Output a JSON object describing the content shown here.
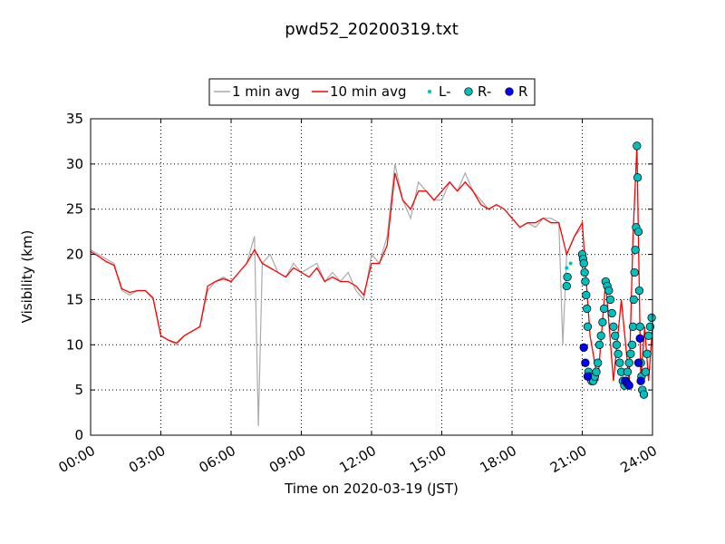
{
  "chart_data": {
    "type": "line",
    "title": "pwd52_20200319.txt",
    "xlabel": "Time on 2020-03-19 (JST)",
    "ylabel": "Visibility (km)",
    "xlim": [
      "00:00",
      "24:00"
    ],
    "ylim": [
      0,
      35
    ],
    "x_ticks": [
      "00:00",
      "03:00",
      "06:00",
      "09:00",
      "12:00",
      "15:00",
      "18:00",
      "21:00",
      "24:00"
    ],
    "y_ticks": [
      0,
      5,
      10,
      15,
      20,
      25,
      30,
      35
    ],
    "grid": true,
    "legend_position": "top-center",
    "series": [
      {
        "name": "1 min avg",
        "kind": "line",
        "color": "#aaaaaa",
        "x": [
          "00:00",
          "00:20",
          "00:40",
          "01:00",
          "01:20",
          "01:40",
          "02:00",
          "02:20",
          "02:40",
          "03:00",
          "03:20",
          "03:40",
          "04:00",
          "04:20",
          "04:40",
          "05:00",
          "05:20",
          "05:40",
          "06:00",
          "06:20",
          "06:40",
          "07:00",
          "07:10",
          "07:20",
          "07:40",
          "08:00",
          "08:20",
          "08:40",
          "09:00",
          "09:20",
          "09:40",
          "10:00",
          "10:20",
          "10:40",
          "11:00",
          "11:20",
          "11:40",
          "12:00",
          "12:20",
          "12:40",
          "13:00",
          "13:20",
          "13:40",
          "14:00",
          "14:20",
          "14:40",
          "15:00",
          "15:20",
          "15:40",
          "16:00",
          "16:20",
          "16:40",
          "17:00",
          "17:20",
          "17:40",
          "18:00",
          "18:20",
          "18:40",
          "19:00",
          "19:20",
          "19:40",
          "20:00",
          "20:10",
          "20:20",
          "20:40",
          "21:00"
        ],
        "values": [
          20.5,
          20,
          19.5,
          19,
          16,
          15.5,
          16,
          16,
          15,
          11,
          10.5,
          10,
          11,
          11.5,
          12,
          16,
          17,
          17.5,
          17,
          18,
          19,
          22,
          1,
          19,
          20,
          18,
          17.5,
          19,
          18,
          18.5,
          19,
          17,
          18,
          17,
          18,
          16,
          15,
          20,
          19,
          22,
          30,
          26,
          24,
          28,
          27,
          26,
          26,
          28,
          27,
          29,
          27,
          26,
          25,
          25.5,
          25,
          24,
          23,
          23.5,
          23,
          24,
          24,
          23.5,
          10,
          20,
          22,
          23
        ]
      },
      {
        "name": "10 min avg",
        "kind": "line",
        "color": "#ff0000",
        "x": [
          "00:00",
          "00:20",
          "00:40",
          "01:00",
          "01:20",
          "01:40",
          "02:00",
          "02:20",
          "02:40",
          "03:00",
          "03:20",
          "03:40",
          "04:00",
          "04:20",
          "04:40",
          "05:00",
          "05:20",
          "05:40",
          "06:00",
          "06:20",
          "06:40",
          "07:00",
          "07:20",
          "07:40",
          "08:00",
          "08:20",
          "08:40",
          "09:00",
          "09:20",
          "09:40",
          "10:00",
          "10:20",
          "10:40",
          "11:00",
          "11:20",
          "11:40",
          "12:00",
          "12:20",
          "12:40",
          "13:00",
          "13:20",
          "13:40",
          "14:00",
          "14:20",
          "14:40",
          "15:00",
          "15:20",
          "15:40",
          "16:00",
          "16:20",
          "16:40",
          "17:00",
          "17:20",
          "17:40",
          "18:00",
          "18:20",
          "18:40",
          "19:00",
          "19:20",
          "19:40",
          "20:00",
          "20:20",
          "20:40",
          "21:00",
          "21:20",
          "21:40",
          "22:00",
          "22:20",
          "22:40",
          "23:00",
          "23:10",
          "23:20",
          "23:30",
          "23:40",
          "23:50",
          "24:00"
        ],
        "values": [
          20.3,
          19.8,
          19.2,
          18.8,
          16.2,
          15.8,
          16,
          16,
          15.2,
          11,
          10.5,
          10.2,
          11,
          11.5,
          12,
          16.5,
          17,
          17.3,
          17,
          18,
          19,
          20.5,
          19,
          18.5,
          18,
          17.5,
          18.5,
          18,
          17.5,
          18.5,
          17,
          17.5,
          17,
          17,
          16.5,
          15.5,
          19,
          19,
          21,
          29,
          26,
          25,
          27,
          27,
          26,
          27,
          28,
          27,
          28,
          27,
          25.5,
          25,
          25.5,
          25,
          24,
          23,
          23.5,
          23.5,
          24,
          23.5,
          23.5,
          20,
          22,
          23.5,
          11,
          6,
          17,
          6,
          15,
          6,
          22,
          32,
          6,
          12,
          6,
          12
        ]
      },
      {
        "name": "L-",
        "kind": "scatter-small",
        "color": "#00bfbf",
        "x": [
          "20:20",
          "20:30"
        ],
        "values": [
          18.5,
          19
        ]
      },
      {
        "name": "R-",
        "kind": "scatter",
        "color": "#00bfbf",
        "x": [
          "20:20",
          "20:22",
          "21:00",
          "21:02",
          "21:04",
          "21:06",
          "21:08",
          "21:10",
          "21:12",
          "21:14",
          "21:16",
          "21:20",
          "21:24",
          "21:28",
          "21:32",
          "21:36",
          "21:40",
          "21:44",
          "21:48",
          "21:52",
          "21:56",
          "22:00",
          "22:04",
          "22:08",
          "22:12",
          "22:16",
          "22:20",
          "22:24",
          "22:28",
          "22:32",
          "22:36",
          "22:40",
          "22:44",
          "22:48",
          "22:52",
          "22:56",
          "23:00",
          "23:04",
          "23:08",
          "23:10",
          "23:12",
          "23:14",
          "23:16",
          "23:18",
          "23:20",
          "23:22",
          "23:24",
          "23:26",
          "23:28",
          "23:30",
          "23:32",
          "23:34",
          "23:38",
          "23:42",
          "23:46",
          "23:50",
          "23:54",
          "23:58"
        ],
        "values": [
          16.5,
          17.5,
          20,
          19.5,
          19,
          18,
          17,
          15.5,
          14,
          12,
          7,
          6.5,
          6,
          6,
          6.5,
          7,
          8,
          10,
          11,
          12.5,
          14,
          17,
          16.5,
          16,
          15,
          13.5,
          12,
          11,
          10,
          9,
          8,
          7,
          6,
          5.5,
          6,
          7,
          8,
          9,
          10,
          12,
          15,
          18,
          20.5,
          23,
          32,
          28.5,
          22.5,
          16,
          12,
          8,
          6.5,
          5,
          4.5,
          7,
          9,
          11,
          12,
          13
        ]
      },
      {
        "name": "R",
        "kind": "scatter",
        "color": "#0000ff",
        "x": [
          "21:04",
          "21:08",
          "21:14",
          "22:50",
          "22:56",
          "23:00",
          "23:24",
          "23:28",
          "23:30"
        ],
        "values": [
          9.7,
          8,
          6.5,
          6,
          5.7,
          5.5,
          8,
          10.7,
          6
        ]
      }
    ]
  }
}
